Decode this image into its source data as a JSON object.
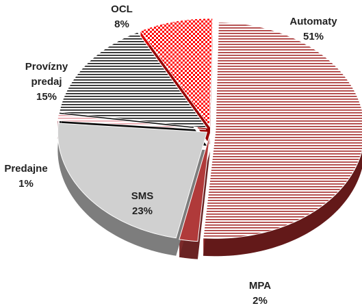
{
  "chart_data": {
    "type": "pie",
    "categories": [
      "Automaty",
      "MPA",
      "SMS",
      "Predajne",
      "Provízny predaj",
      "OCL"
    ],
    "values": [
      51,
      2,
      23,
      1,
      15,
      8
    ],
    "value_labels": [
      "51%",
      "2%",
      "23%",
      "1%",
      "15%",
      "8%"
    ],
    "colors": [
      "#a52a2a",
      "#b03a3a",
      "#d0d0d0",
      "#e8a0a8",
      "#111111",
      "#ff0000"
    ],
    "patterns": [
      "hstripe",
      "solid",
      "solid",
      "hstripe",
      "hstripe",
      "checker"
    ]
  }
}
